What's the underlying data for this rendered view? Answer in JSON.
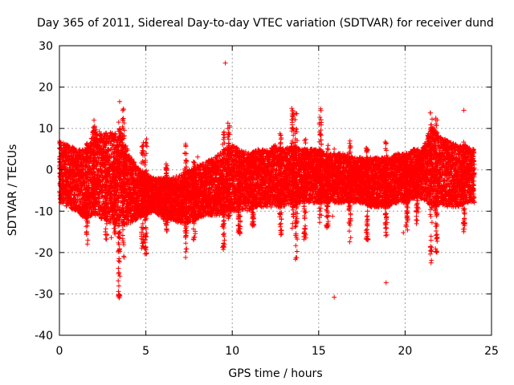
{
  "chart_data": {
    "type": "scatter",
    "title": "Day 365 of 2011, Sidereal Day-to-day VTEC variation (SDTVAR) for receiver dund",
    "xlabel": "GPS time / hours",
    "ylabel": "SDTVAR / TECUs",
    "xlim": [
      0,
      25
    ],
    "ylim": [
      -40,
      30
    ],
    "xticks": [
      0,
      5,
      10,
      15,
      20,
      25
    ],
    "yticks": [
      -40,
      -30,
      -20,
      -10,
      0,
      10,
      20,
      30
    ],
    "grid": true,
    "marker": "+",
    "color": "#ff0000",
    "series": [
      {
        "name": "SDTVAR",
        "band": [
          [
            0.0,
            -8,
            7
          ],
          [
            0.5,
            -9,
            6
          ],
          [
            1.0,
            -10,
            5
          ],
          [
            1.5,
            -12,
            5
          ],
          [
            2.0,
            -11,
            10
          ],
          [
            2.5,
            -12,
            9
          ],
          [
            3.0,
            -13,
            9
          ],
          [
            3.5,
            -14,
            10
          ],
          [
            4.0,
            -13,
            4
          ],
          [
            4.5,
            -12,
            1
          ],
          [
            5.0,
            -11,
            -1
          ],
          [
            5.5,
            -10,
            -2
          ],
          [
            6.0,
            -12,
            -2
          ],
          [
            6.5,
            -12,
            -2
          ],
          [
            7.0,
            -13,
            -1
          ],
          [
            7.5,
            -13,
            0
          ],
          [
            8.0,
            -12,
            1
          ],
          [
            8.5,
            -11,
            2
          ],
          [
            9.0,
            -11,
            3
          ],
          [
            9.5,
            -11,
            5
          ],
          [
            10.0,
            -10,
            6
          ],
          [
            10.5,
            -10,
            5
          ],
          [
            11.0,
            -10,
            4
          ],
          [
            11.5,
            -9,
            5
          ],
          [
            12.0,
            -9,
            5
          ],
          [
            12.5,
            -9,
            6
          ],
          [
            13.0,
            -9,
            5
          ],
          [
            13.5,
            -9,
            6
          ],
          [
            14.0,
            -8,
            5
          ],
          [
            14.5,
            -8,
            5
          ],
          [
            15.0,
            -8,
            5
          ],
          [
            15.5,
            -8,
            4
          ],
          [
            16.0,
            -8,
            4
          ],
          [
            16.5,
            -8,
            4
          ],
          [
            17.0,
            -8,
            3
          ],
          [
            17.5,
            -8,
            3
          ],
          [
            18.0,
            -9,
            3
          ],
          [
            18.5,
            -9,
            3
          ],
          [
            19.0,
            -9,
            3
          ],
          [
            19.5,
            -8,
            4
          ],
          [
            20.0,
            -8,
            4
          ],
          [
            20.5,
            -7,
            5
          ],
          [
            21.0,
            -7,
            5
          ],
          [
            21.5,
            -9,
            11
          ],
          [
            22.0,
            -9,
            8
          ],
          [
            22.5,
            -9,
            7
          ],
          [
            23.0,
            -9,
            6
          ],
          [
            23.5,
            -8,
            6
          ],
          [
            24.0,
            -8,
            5
          ]
        ],
        "spikes": [
          [
            1.6,
            -18,
            8
          ],
          [
            2.0,
            -9,
            11
          ],
          [
            2.7,
            -17,
            9
          ],
          [
            3.2,
            -16,
            10
          ],
          [
            3.45,
            -31,
            17
          ],
          [
            3.7,
            -22,
            16
          ],
          [
            4.8,
            -19,
            7
          ],
          [
            5.0,
            -21,
            8
          ],
          [
            6.2,
            -15,
            2
          ],
          [
            7.3,
            -20,
            6
          ],
          [
            7.8,
            -17,
            3
          ],
          [
            9.5,
            -20,
            10
          ],
          [
            9.8,
            -12,
            12
          ],
          [
            10.4,
            -16,
            3
          ],
          [
            11.2,
            -14,
            4
          ],
          [
            12.8,
            -16,
            9
          ],
          [
            13.5,
            -16,
            15
          ],
          [
            13.7,
            -22,
            14
          ],
          [
            14.2,
            -17,
            8
          ],
          [
            15.1,
            -13,
            16
          ],
          [
            15.5,
            -15,
            6
          ],
          [
            16.8,
            -17,
            8
          ],
          [
            17.8,
            -17,
            6
          ],
          [
            18.9,
            -16,
            7
          ],
          [
            20.1,
            -15,
            4
          ],
          [
            20.7,
            -14,
            5
          ],
          [
            21.5,
            -22,
            14
          ],
          [
            21.8,
            -20,
            13
          ],
          [
            23.4,
            -15,
            7
          ]
        ],
        "outliers": [
          [
            9.6,
            25.8
          ],
          [
            3.5,
            -30.5
          ],
          [
            15.9,
            -30.8
          ],
          [
            18.9,
            -27.3
          ],
          [
            7.3,
            -21.2
          ],
          [
            3.0,
            -16.4
          ],
          [
            23.4,
            14.4
          ],
          [
            2.0,
            12.0
          ],
          [
            15.9,
            5.0
          ],
          [
            7.3,
            6.2
          ],
          [
            8.0,
            3.1
          ],
          [
            21.5,
            -22.5
          ],
          [
            16.8,
            -17.4
          ],
          [
            19.9,
            -15.2
          ],
          [
            15.8,
            -11.2
          ]
        ]
      }
    ]
  }
}
